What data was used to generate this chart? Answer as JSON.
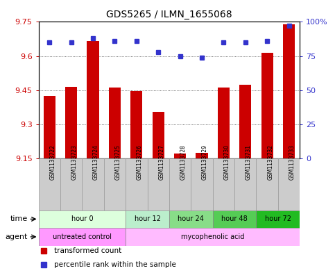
{
  "title": "GDS5265 / ILMN_1655068",
  "samples": [
    "GSM1133722",
    "GSM1133723",
    "GSM1133724",
    "GSM1133725",
    "GSM1133726",
    "GSM1133727",
    "GSM1133728",
    "GSM1133729",
    "GSM1133730",
    "GSM1133731",
    "GSM1133732",
    "GSM1133733"
  ],
  "bar_values": [
    9.425,
    9.465,
    9.665,
    9.46,
    9.445,
    9.355,
    9.17,
    9.175,
    9.46,
    9.475,
    9.615,
    9.74
  ],
  "bar_bottom": 9.15,
  "dot_values_pct": [
    85,
    85,
    88,
    86,
    86,
    78,
    75,
    74,
    85,
    85,
    86,
    97
  ],
  "ylim_left": [
    9.15,
    9.75
  ],
  "ylim_right": [
    0,
    100
  ],
  "yticks_left": [
    9.15,
    9.3,
    9.45,
    9.6,
    9.75
  ],
  "yticks_right": [
    0,
    25,
    50,
    75,
    100
  ],
  "ytick_labels_right": [
    "0",
    "25",
    "50",
    "75",
    "100%"
  ],
  "bar_color": "#cc0000",
  "dot_color": "#3333cc",
  "time_groups": [
    {
      "label": "hour 0",
      "start": 0,
      "end": 4,
      "color": "#ddffdd"
    },
    {
      "label": "hour 12",
      "start": 4,
      "end": 6,
      "color": "#bbeecc"
    },
    {
      "label": "hour 24",
      "start": 6,
      "end": 8,
      "color": "#88dd88"
    },
    {
      "label": "hour 48",
      "start": 8,
      "end": 10,
      "color": "#55cc55"
    },
    {
      "label": "hour 72",
      "start": 10,
      "end": 12,
      "color": "#22bb22"
    }
  ],
  "agent_groups": [
    {
      "label": "untreated control",
      "start": 0,
      "end": 4,
      "color": "#ff99ff"
    },
    {
      "label": "mycophenolic acid",
      "start": 4,
      "end": 12,
      "color": "#ffbbff"
    }
  ],
  "sample_box_color": "#cccccc",
  "sample_box_edge": "#999999",
  "background_color": "#ffffff",
  "grid_color": "#555555",
  "legend_items": [
    {
      "label": "transformed count",
      "color": "#cc0000"
    },
    {
      "label": "percentile rank within the sample",
      "color": "#3333cc"
    }
  ]
}
